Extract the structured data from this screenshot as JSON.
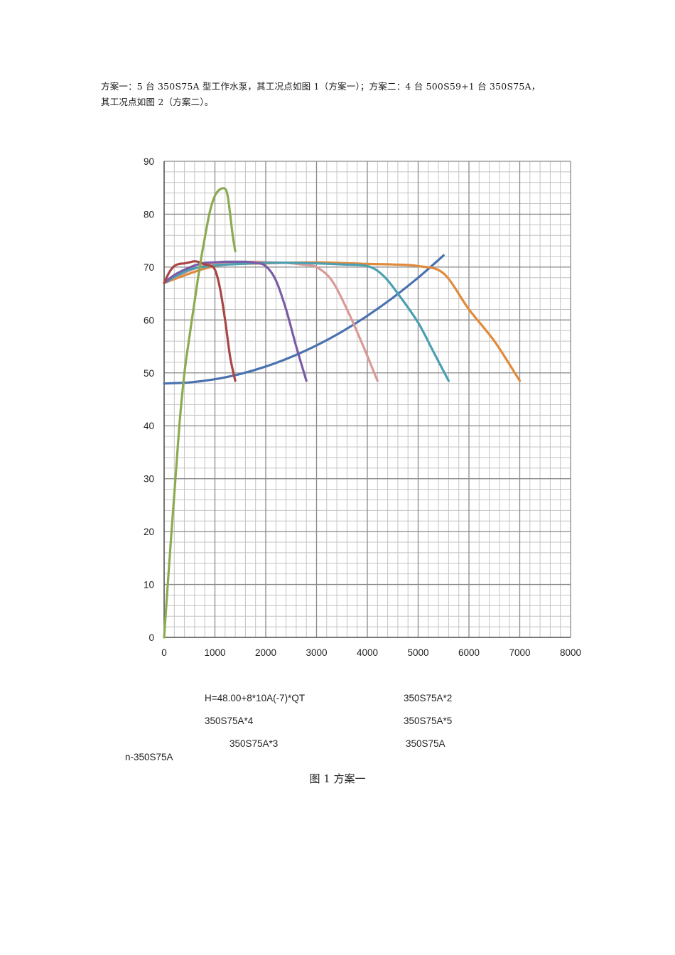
{
  "intro": {
    "line1": "方案一：5 台 350S75A 型工作水泵，其工况点如图 1（方案一）；方案二：4 台 500S59+1 台 350S75A，",
    "line2": "其工况点如图 2（方案二）。"
  },
  "chart_data": {
    "type": "line",
    "title": "",
    "xlabel": "",
    "ylabel": "",
    "xlim": [
      0,
      8000
    ],
    "ylim": [
      0,
      90
    ],
    "x_ticks": [
      0,
      1000,
      2000,
      3000,
      4000,
      5000,
      6000,
      7000,
      8000
    ],
    "y_ticks": [
      0,
      10,
      20,
      30,
      40,
      50,
      60,
      70,
      80,
      90
    ],
    "grid": true,
    "series": [
      {
        "name": "H=48.00+8*10A(-7)*QT",
        "color": "#4a72b0",
        "points": [
          [
            0,
            48
          ],
          [
            500,
            48.2
          ],
          [
            1000,
            48.8
          ],
          [
            1500,
            49.8
          ],
          [
            2000,
            51.2
          ],
          [
            2500,
            53
          ],
          [
            3000,
            55.2
          ],
          [
            3500,
            57.8
          ],
          [
            4000,
            60.8
          ],
          [
            4500,
            64.2
          ],
          [
            5000,
            68
          ],
          [
            5500,
            72.2
          ]
        ]
      },
      {
        "name": "350S75A*2",
        "color": "#a94545",
        "points": [
          [
            0,
            67
          ],
          [
            100,
            69
          ],
          [
            200,
            70.2
          ],
          [
            300,
            70.6
          ],
          [
            400,
            70.7
          ],
          [
            500,
            70.9
          ],
          [
            600,
            71.1
          ],
          [
            700,
            70.9
          ],
          [
            800,
            70.5
          ],
          [
            900,
            70.3
          ],
          [
            1000,
            69.5
          ],
          [
            1100,
            66
          ],
          [
            1200,
            60
          ],
          [
            1300,
            53
          ],
          [
            1400,
            48.5
          ]
        ]
      },
      {
        "name": "350S75A*4",
        "color": "#7a5ca6",
        "points": [
          [
            0,
            67
          ],
          [
            200,
            68.5
          ],
          [
            400,
            69.5
          ],
          [
            600,
            70.3
          ],
          [
            800,
            70.8
          ],
          [
            1000,
            70.9
          ],
          [
            1200,
            71
          ],
          [
            1400,
            71
          ],
          [
            1600,
            71
          ],
          [
            1800,
            70.8
          ],
          [
            2000,
            70.2
          ],
          [
            2200,
            67.5
          ],
          [
            2400,
            62
          ],
          [
            2600,
            55
          ],
          [
            2800,
            48.5
          ]
        ]
      },
      {
        "name": "350S75A*5",
        "color": "#4aa0b2",
        "points": [
          [
            0,
            67
          ],
          [
            500,
            69.5
          ],
          [
            1000,
            70.3
          ],
          [
            1500,
            70.6
          ],
          [
            2000,
            70.8
          ],
          [
            2500,
            70.8
          ],
          [
            3000,
            70.7
          ],
          [
            3500,
            70.5
          ],
          [
            4000,
            70.2
          ],
          [
            4300,
            68.5
          ],
          [
            4600,
            65
          ],
          [
            5000,
            59.5
          ],
          [
            5300,
            54
          ],
          [
            5600,
            48.5
          ]
        ]
      },
      {
        "name": "350S75A*3",
        "color": "#d99a96",
        "points": [
          [
            0,
            67
          ],
          [
            300,
            68.5
          ],
          [
            600,
            69.7
          ],
          [
            900,
            70.5
          ],
          [
            1200,
            70.8
          ],
          [
            1500,
            70.9
          ],
          [
            1800,
            71
          ],
          [
            2100,
            70.9
          ],
          [
            2400,
            70.8
          ],
          [
            2700,
            70.5
          ],
          [
            3000,
            70
          ],
          [
            3300,
            67.5
          ],
          [
            3600,
            62
          ],
          [
            3900,
            55.5
          ],
          [
            4200,
            48.5
          ]
        ]
      },
      {
        "name": "350S75A",
        "color": "#8bab51",
        "points": [
          [
            0,
            0
          ],
          [
            100,
            14
          ],
          [
            200,
            27
          ],
          [
            300,
            40
          ],
          [
            400,
            50
          ],
          [
            500,
            57
          ],
          [
            600,
            63.5
          ],
          [
            700,
            70
          ],
          [
            800,
            75.5
          ],
          [
            900,
            80.5
          ],
          [
            1000,
            83.5
          ],
          [
            1100,
            84.7
          ],
          [
            1200,
            84.8
          ],
          [
            1250,
            83.5
          ],
          [
            1300,
            80
          ],
          [
            1350,
            76
          ],
          [
            1400,
            73
          ]
        ]
      },
      {
        "name": "n-350S75A",
        "color": "#e08a3c",
        "points": [
          [
            0,
            67
          ],
          [
            1000,
            70.2
          ],
          [
            2000,
            70.7
          ],
          [
            3000,
            70.9
          ],
          [
            4000,
            70.6
          ],
          [
            4500,
            70.5
          ],
          [
            5000,
            70.2
          ],
          [
            5500,
            68.8
          ],
          [
            6000,
            62
          ],
          [
            6500,
            56
          ],
          [
            7000,
            48.5
          ]
        ]
      }
    ]
  },
  "legend": {
    "item1": "H=48.00+8*10A(-7)*QT",
    "item2": "350S75A*2",
    "item3": "350S75A*4",
    "item4": "350S75A*5",
    "item5": "350S75A*3",
    "item6": "350S75A",
    "item7": "n-350S75A"
  },
  "caption": "图 1 方案一"
}
